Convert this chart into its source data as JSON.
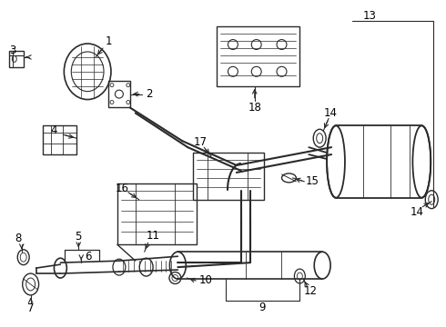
{
  "bg_color": "#ffffff",
  "line_color": "#2a2a2a",
  "figsize": [
    4.9,
    3.6
  ],
  "dpi": 100
}
